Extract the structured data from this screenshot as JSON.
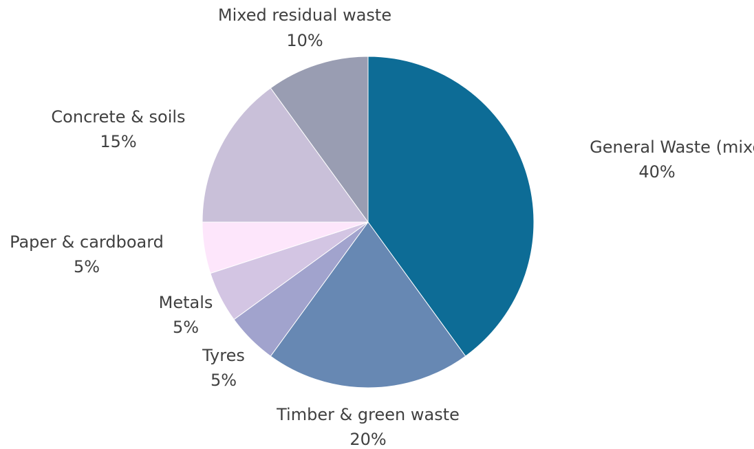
{
  "chart_data": {
    "type": "pie",
    "slices": [
      {
        "label": "General Waste (mixed)",
        "value": 40,
        "value_label": "40%",
        "color": "#0d6c96"
      },
      {
        "label": "Timber & green waste",
        "value": 20,
        "value_label": "20%",
        "color": "#6788b3"
      },
      {
        "label": "Tyres",
        "value": 5,
        "value_label": "5%",
        "color": "#a1a3cd"
      },
      {
        "label": "Metals",
        "value": 5,
        "value_label": "5%",
        "color": "#d3c5e3"
      },
      {
        "label": "Paper & cardboard",
        "value": 5,
        "value_label": "5%",
        "color": "#fde6fb"
      },
      {
        "label": "Concrete & soils",
        "value": 15,
        "value_label": "15%",
        "color": "#c9c0d9"
      },
      {
        "label": "Mixed residual waste",
        "value": 10,
        "value_label": "10%",
        "color": "#999db2"
      }
    ],
    "start_angle_deg": 0,
    "direction": "clockwise",
    "legend": "none",
    "labels": "outside, category and percentage"
  }
}
